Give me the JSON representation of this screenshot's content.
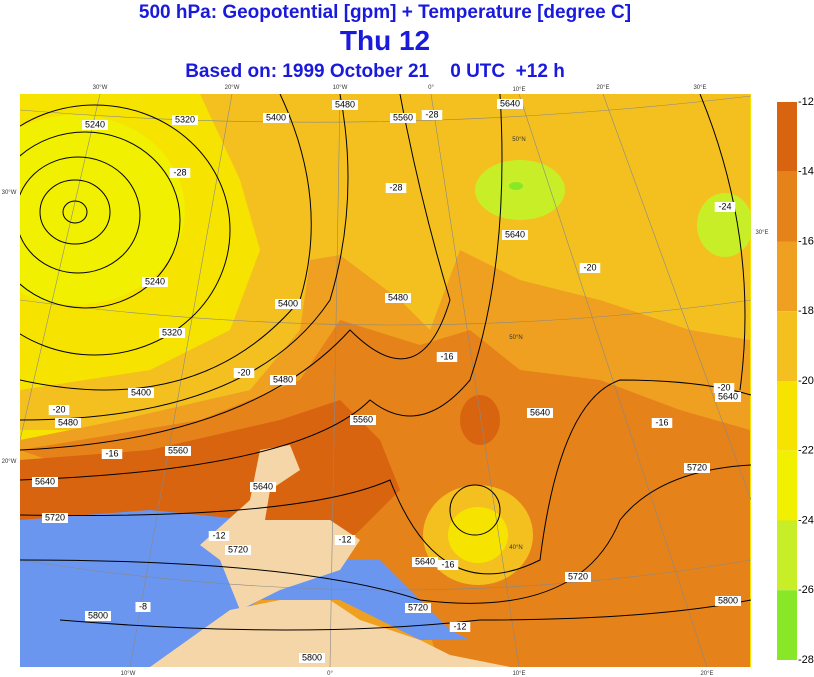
{
  "header": {
    "title": "500 hPa: Geopotential [gpm] + Temperature [degree C]",
    "day": "Thu 12",
    "based_on": "Based on: 1999 October 21    0 UTC  +12 h"
  },
  "colorbar": {
    "ticks": [
      "-12",
      "-14",
      "-16",
      "-18",
      "-20",
      "-22",
      "-24",
      "-26",
      "-28"
    ],
    "colors": [
      "#d86410",
      "#e6821a",
      "#f0a020",
      "#f4c020",
      "#f6e400",
      "#f0f000",
      "#c8ee28",
      "#88e828"
    ]
  },
  "map": {
    "geopotential_labels": [
      "5240",
      "5320",
      "5400",
      "5480",
      "5560",
      "5640",
      "5640",
      "5480",
      "5400",
      "5240",
      "5320",
      "5400",
      "5480",
      "5560",
      "5640",
      "5720",
      "5800",
      "5480",
      "5560",
      "5640",
      "5720",
      "5720",
      "5800",
      "5640",
      "5720",
      "5800",
      "5720",
      "5640",
      "5640"
    ],
    "temperature_labels": [
      "-28",
      "-28",
      "-28",
      "-24",
      "-20",
      "-16",
      "-20",
      "-20",
      "-16",
      "-12",
      "-12",
      "-16",
      "-8",
      "-12",
      "-20",
      "-16"
    ],
    "grid_labels": [
      "30°W",
      "20°W",
      "10°W",
      "0°",
      "10°E",
      "20°E",
      "30°E",
      "30°W",
      "20°W",
      "30°E",
      "10°W",
      "0°",
      "10°E",
      "20°E",
      "50°N",
      "50°N",
      "40°N"
    ]
  }
}
